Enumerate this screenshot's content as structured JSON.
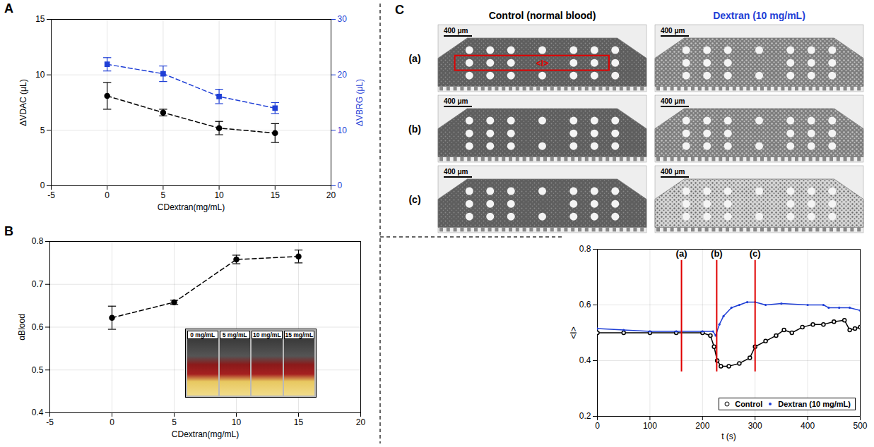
{
  "chart_data": [
    {
      "panel": "A",
      "type": "line",
      "xlabel": "CDextran(mg/mL)",
      "ylabel": "ΔVDAC (μL)",
      "y2label": "ΔVBRG (μL)",
      "x": [
        0,
        5,
        10,
        15
      ],
      "xlim": [
        -5,
        20
      ],
      "xticks": [
        -5,
        0,
        5,
        10,
        15,
        20
      ],
      "ylim": [
        0,
        15
      ],
      "yticks": [
        0,
        5,
        10,
        15
      ],
      "y2lim": [
        0,
        30
      ],
      "y2ticks": [
        0,
        10,
        20,
        30
      ],
      "grid": true,
      "series": [
        {
          "color": "#000000",
          "marker": "circle",
          "line_style": "dashed",
          "values": [
            8.1,
            6.6,
            5.2,
            4.75
          ],
          "errors": [
            1.2,
            0.3,
            0.6,
            0.85
          ]
        },
        {
          "color": "#1f3fd6",
          "marker": "square",
          "line_style": "dashed",
          "axis": "y2",
          "values": [
            21.9,
            20.2,
            16.1,
            14.0
          ],
          "errors": [
            1.2,
            1.4,
            1.3,
            1.0
          ]
        }
      ]
    },
    {
      "panel": "B",
      "type": "line",
      "xlabel": "CDextran(mg/mL)",
      "ylabel": "αBlood",
      "x": [
        0,
        5,
        10,
        15
      ],
      "xlim": [
        -5,
        20
      ],
      "xticks": [
        -5,
        0,
        5,
        10,
        15,
        20
      ],
      "ylim": [
        0.4,
        0.8
      ],
      "yticks": [
        0.4,
        0.5,
        0.6,
        0.7,
        0.8
      ],
      "grid": true,
      "inset_labels": [
        "0 mg/mL",
        "5 mg/mL",
        "10 mg/mL",
        "15 mg/mL"
      ],
      "series": [
        {
          "color": "#000000",
          "marker": "circle",
          "line_style": "dashed",
          "values": [
            0.622,
            0.658,
            0.758,
            0.765
          ],
          "errors": [
            0.027,
            0.005,
            0.01,
            0.015
          ]
        }
      ]
    },
    {
      "type": "line",
      "xlabel": "t (s)",
      "ylabel": "<I>",
      "xlim": [
        0,
        500
      ],
      "xticks": [
        0,
        100,
        200,
        300,
        400,
        500
      ],
      "ylim": [
        0.2,
        0.8
      ],
      "yticks": [
        0.2,
        0.4,
        0.6,
        0.8
      ],
      "grid": true,
      "legend": "lower right",
      "markers": {
        "ymin": 0.36,
        "ymax": 0.76,
        "color": "#e00000",
        "items": [
          {
            "label": "(a)",
            "x": 160
          },
          {
            "label": "(b)",
            "x": 227
          },
          {
            "label": "(c)",
            "x": 300
          }
        ]
      },
      "series": [
        {
          "name": "Control",
          "color": "#000000",
          "marker": "circle_open",
          "line_style": "solid",
          "x": [
            0,
            50,
            100,
            150,
            200,
            215,
            222,
            228,
            235,
            250,
            270,
            290,
            300,
            320,
            340,
            355,
            370,
            390,
            410,
            430,
            450,
            470,
            480,
            490,
            500
          ],
          "values": [
            0.5,
            0.5,
            0.5,
            0.5,
            0.5,
            0.49,
            0.45,
            0.4,
            0.38,
            0.38,
            0.39,
            0.41,
            0.45,
            0.47,
            0.49,
            0.51,
            0.5,
            0.52,
            0.53,
            0.53,
            0.54,
            0.545,
            0.51,
            0.515,
            0.52
          ]
        },
        {
          "name": "Dextran (10 mg/mL)",
          "color": "#1f3fd6",
          "marker": "dot",
          "line_style": "solid",
          "x": [
            0,
            50,
            100,
            150,
            200,
            220,
            225,
            232,
            240,
            255,
            270,
            285,
            300,
            320,
            350,
            400,
            430,
            440,
            460,
            480,
            500
          ],
          "values": [
            0.515,
            0.51,
            0.505,
            0.505,
            0.505,
            0.505,
            0.49,
            0.53,
            0.56,
            0.59,
            0.6,
            0.61,
            0.61,
            0.6,
            0.605,
            0.6,
            0.6,
            0.59,
            0.59,
            0.59,
            0.58
          ]
        }
      ]
    }
  ],
  "images": {
    "panel": "C",
    "columns": [
      {
        "title": "Control (normal blood)",
        "color": "#000000"
      },
      {
        "title": "Dextran (10 mg/mL)",
        "color": "#1f3fd6"
      }
    ],
    "rows": [
      "(a)",
      "(b)",
      "(c)"
    ],
    "scale_bar": "400 μm",
    "roi_label": "<I>"
  }
}
